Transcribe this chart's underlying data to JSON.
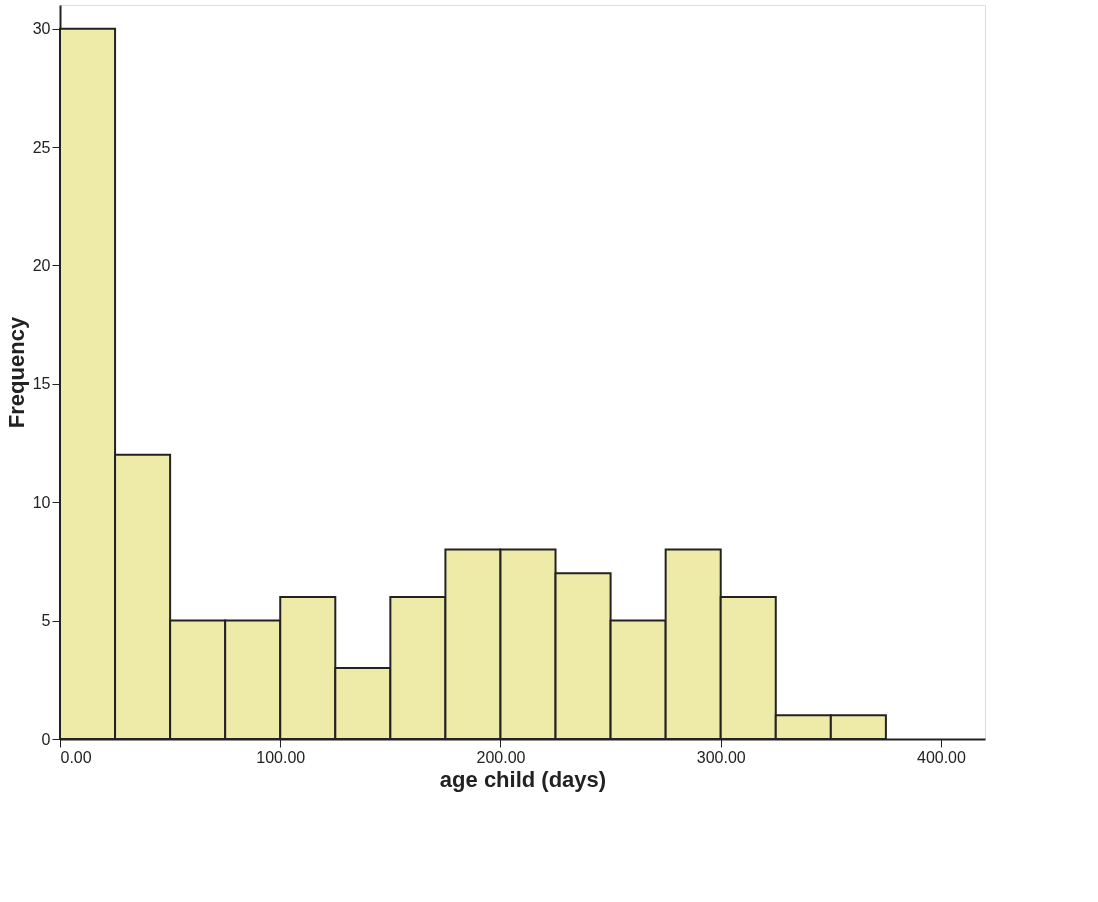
{
  "chart_data": {
    "type": "histogram",
    "xlabel": "age child (days)",
    "ylabel": "Frequency",
    "bins": [
      0,
      25,
      50,
      75,
      100,
      125,
      150,
      175,
      200,
      225,
      250,
      275,
      300,
      325,
      350,
      375
    ],
    "values": [
      30,
      12,
      5,
      5,
      6,
      3,
      6,
      8,
      8,
      7,
      5,
      8,
      6,
      1,
      1
    ],
    "color": "#eeeaa8",
    "xlim": [
      0,
      420
    ],
    "ylim": [
      0,
      31
    ],
    "xticks": [
      {
        "value": 0,
        "label": "0.00"
      },
      {
        "value": 100,
        "label": "100.00"
      },
      {
        "value": 200,
        "label": "200.00"
      },
      {
        "value": 300,
        "label": "300.00"
      },
      {
        "value": 400,
        "label": "400.00"
      }
    ],
    "yticks": [
      0,
      5,
      10,
      15,
      20,
      25,
      30
    ],
    "grid": false
  }
}
